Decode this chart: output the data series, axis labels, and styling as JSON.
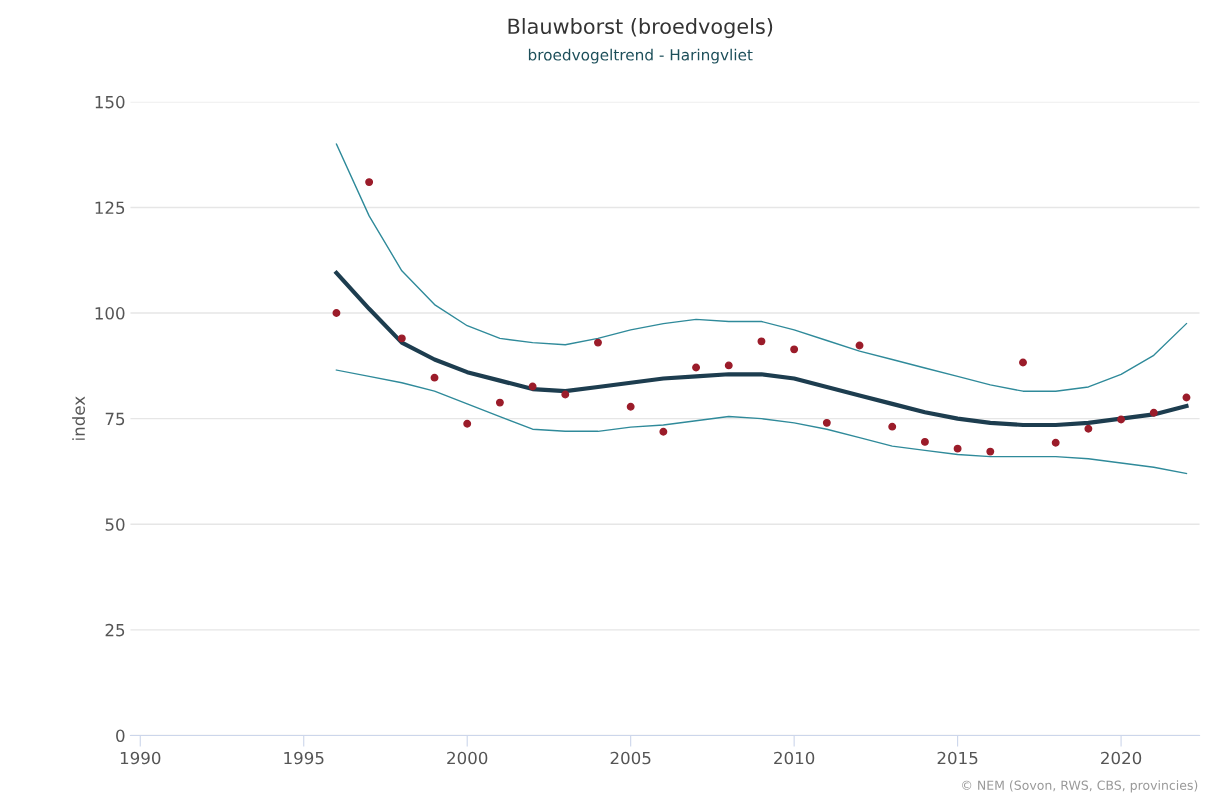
{
  "chart_data": {
    "type": "line",
    "title": "Blauwborst (broedvogels)",
    "subtitle": "broedvogeltrend - Haringvliet",
    "ylabel": "index",
    "annotations": [
      "© NEM (Sovon, RWS, CBS, provincies)"
    ],
    "xlim": [
      1989.7,
      2022.4
    ],
    "xticks": [
      1990,
      1995,
      2000,
      2005,
      2010,
      2015,
      2020
    ],
    "ylim": [
      0,
      150
    ],
    "yticks": [
      0,
      25,
      50,
      75,
      100,
      125,
      150
    ],
    "grid": "y",
    "series": [
      {
        "type": "scatter",
        "marker": "circle",
        "color": "#9b1c2a",
        "x": [
          1996,
          1997,
          1998,
          1999,
          2000,
          2001,
          2002,
          2003,
          2004,
          2005,
          2006,
          2007,
          2008,
          2009,
          2010,
          2011,
          2012,
          2013,
          2014,
          2015,
          2016,
          2017,
          2018,
          2019,
          2020,
          2021,
          2022
        ],
        "values": [
          100,
          131,
          94,
          84.7,
          73.8,
          78.8,
          82.6,
          80.7,
          93,
          77.8,
          71.9,
          87.1,
          87.6,
          93.3,
          91.4,
          74,
          92.3,
          73.1,
          69.5,
          67.9,
          67.2,
          88.3,
          69.3,
          72.6,
          74.8,
          76.4,
          80
        ]
      },
      {
        "color": "#2f8a9a",
        "x": [
          1996,
          1997,
          1998,
          1999,
          2000,
          2001,
          2002,
          2003,
          2004,
          2005,
          2006,
          2007,
          2008,
          2009,
          2010,
          2011,
          2012,
          2013,
          2014,
          2015,
          2016,
          2017,
          2018,
          2019,
          2020,
          2021,
          2022
        ],
        "values": [
          140,
          123,
          110,
          102,
          97,
          94,
          93,
          92.5,
          94,
          96,
          97.5,
          98.5,
          98,
          98,
          96,
          93.5,
          91,
          89,
          87,
          85,
          83,
          81.5,
          81.5,
          82.5,
          85.5,
          90,
          97.5
        ]
      },
      {
        "color": "#2f8a9a",
        "x": [
          1996,
          1997,
          1998,
          1999,
          2000,
          2001,
          2002,
          2003,
          2004,
          2005,
          2006,
          2007,
          2008,
          2009,
          2010,
          2011,
          2012,
          2013,
          2014,
          2015,
          2016,
          2017,
          2018,
          2019,
          2020,
          2021,
          2022
        ],
        "values": [
          86.5,
          85,
          83.5,
          81.5,
          78.5,
          75.5,
          72.5,
          72,
          72,
          73,
          73.5,
          74.5,
          75.5,
          75,
          74,
          72.5,
          70.5,
          68.5,
          67.5,
          66.5,
          66,
          66,
          66,
          65.5,
          64.5,
          63.5,
          62
        ]
      },
      {
        "type": "line",
        "color": "#1d3d4f",
        "x": [
          1996,
          1997,
          1998,
          1999,
          2000,
          2001,
          2002,
          2003,
          2004,
          2005,
          2006,
          2007,
          2008,
          2009,
          2010,
          2011,
          2012,
          2013,
          2014,
          2015,
          2016,
          2017,
          2018,
          2019,
          2020,
          2021,
          2022
        ],
        "values": [
          109.5,
          101,
          93,
          89,
          86,
          84,
          82,
          81.5,
          82.5,
          83.5,
          84.5,
          85,
          85.5,
          85.5,
          84.5,
          82.5,
          80.5,
          78.5,
          76.5,
          75,
          74,
          73.5,
          73.5,
          74,
          75,
          76,
          78
        ]
      }
    ]
  }
}
